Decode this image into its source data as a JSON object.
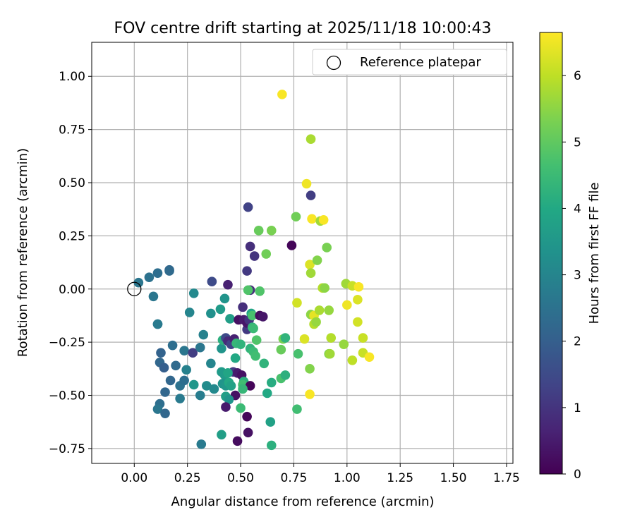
{
  "chart_data": {
    "type": "scatter",
    "title": "FOV centre drift starting at 2025/11/18 10:00:43",
    "xlabel": "Angular distance from reference (arcmin)",
    "ylabel": "Rotation from reference (arcmin)",
    "xlim": [
      -0.2,
      1.78
    ],
    "ylim": [
      -0.82,
      1.16
    ],
    "xticks": [
      0.0,
      0.25,
      0.5,
      0.75,
      1.0,
      1.25,
      1.5,
      1.75
    ],
    "xtick_labels": [
      "0.00",
      "0.25",
      "0.50",
      "0.75",
      "1.00",
      "1.25",
      "1.50",
      "1.75"
    ],
    "yticks": [
      -0.75,
      -0.5,
      -0.25,
      0.0,
      0.25,
      0.5,
      0.75,
      1.0
    ],
    "ytick_labels": [
      "−0.75",
      "−0.50",
      "−0.25",
      "0.00",
      "0.25",
      "0.50",
      "0.75",
      "1.00"
    ],
    "grid": true,
    "legend": {
      "position": "top-right",
      "entries": [
        "Reference platepar"
      ]
    },
    "reference_point": {
      "x": 0.0,
      "y": 0.0,
      "label": "Reference platepar"
    },
    "colorbar": {
      "label": "Hours from first FF file",
      "colormap": "viridis",
      "range": [
        0,
        6.65
      ],
      "ticks": [
        0,
        1,
        2,
        3,
        4,
        5,
        6
      ],
      "tick_labels": [
        "0",
        "1",
        "2",
        "3",
        "4",
        "5",
        "6"
      ]
    },
    "points": [
      {
        "x": 0.02,
        "y": 0.03,
        "hours": 2.6
      },
      {
        "x": 0.07,
        "y": 0.055,
        "hours": 2.5
      },
      {
        "x": 0.11,
        "y": 0.075,
        "hours": 2.4
      },
      {
        "x": 0.165,
        "y": 0.09,
        "hours": 2.2
      },
      {
        "x": 0.165,
        "y": 0.085,
        "hours": 2.3
      },
      {
        "x": 0.09,
        "y": -0.035,
        "hours": 2.6
      },
      {
        "x": 0.11,
        "y": -0.165,
        "hours": 2.6
      },
      {
        "x": 0.11,
        "y": -0.165,
        "hours": 2.7
      },
      {
        "x": 0.28,
        "y": -0.02,
        "hours": 3.1
      },
      {
        "x": 0.26,
        "y": -0.11,
        "hours": 3.0
      },
      {
        "x": 0.18,
        "y": -0.265,
        "hours": 2.4
      },
      {
        "x": 0.125,
        "y": -0.3,
        "hours": 2.1
      },
      {
        "x": 0.12,
        "y": -0.345,
        "hours": 2.2
      },
      {
        "x": 0.14,
        "y": -0.37,
        "hours": 2.0
      },
      {
        "x": 0.195,
        "y": -0.36,
        "hours": 2.3
      },
      {
        "x": 0.17,
        "y": -0.43,
        "hours": 2.2
      },
      {
        "x": 0.145,
        "y": -0.485,
        "hours": 2.2
      },
      {
        "x": 0.215,
        "y": -0.455,
        "hours": 2.5
      },
      {
        "x": 0.235,
        "y": -0.29,
        "hours": 2.6
      },
      {
        "x": 0.245,
        "y": -0.38,
        "hours": 2.9
      },
      {
        "x": 0.235,
        "y": -0.43,
        "hours": 2.4
      },
      {
        "x": 0.215,
        "y": -0.515,
        "hours": 2.7
      },
      {
        "x": 0.12,
        "y": -0.54,
        "hours": 2.4
      },
      {
        "x": 0.11,
        "y": -0.565,
        "hours": 2.6
      },
      {
        "x": 0.145,
        "y": -0.585,
        "hours": 2.2
      },
      {
        "x": 0.275,
        "y": -0.3,
        "hours": 1.2
      },
      {
        "x": 0.31,
        "y": -0.275,
        "hours": 2.6
      },
      {
        "x": 0.325,
        "y": -0.215,
        "hours": 2.9
      },
      {
        "x": 0.28,
        "y": -0.45,
        "hours": 3.5
      },
      {
        "x": 0.31,
        "y": -0.5,
        "hours": 2.8
      },
      {
        "x": 0.315,
        "y": -0.73,
        "hours": 2.7
      },
      {
        "x": 0.34,
        "y": -0.455,
        "hours": 3.2
      },
      {
        "x": 0.36,
        "y": -0.115,
        "hours": 3.3
      },
      {
        "x": 0.365,
        "y": 0.035,
        "hours": 1.5
      },
      {
        "x": 0.36,
        "y": -0.35,
        "hours": 3.0
      },
      {
        "x": 0.375,
        "y": -0.47,
        "hours": 3.1
      },
      {
        "x": 0.405,
        "y": -0.095,
        "hours": 3.6
      },
      {
        "x": 0.425,
        "y": -0.045,
        "hours": 3.4
      },
      {
        "x": 0.44,
        "y": 0.02,
        "hours": 0.6
      },
      {
        "x": 0.45,
        "y": -0.14,
        "hours": 3.7
      },
      {
        "x": 0.41,
        "y": -0.28,
        "hours": 3.4
      },
      {
        "x": 0.415,
        "y": -0.24,
        "hours": 4.2
      },
      {
        "x": 0.43,
        "y": -0.23,
        "hours": 1.5
      },
      {
        "x": 0.44,
        "y": -0.245,
        "hours": 0.8
      },
      {
        "x": 0.455,
        "y": -0.26,
        "hours": 1.3
      },
      {
        "x": 0.47,
        "y": -0.235,
        "hours": 0.6
      },
      {
        "x": 0.48,
        "y": -0.255,
        "hours": 4.4
      },
      {
        "x": 0.5,
        "y": -0.26,
        "hours": 4.3
      },
      {
        "x": 0.49,
        "y": -0.145,
        "hours": 0.3
      },
      {
        "x": 0.515,
        "y": -0.145,
        "hours": 0.5
      },
      {
        "x": 0.51,
        "y": -0.085,
        "hours": 0.9
      },
      {
        "x": 0.53,
        "y": -0.19,
        "hours": 1.1
      },
      {
        "x": 0.53,
        "y": -0.16,
        "hours": 0.4
      },
      {
        "x": 0.54,
        "y": -0.145,
        "hours": 1.0
      },
      {
        "x": 0.53,
        "y": 0.085,
        "hours": 1.1
      },
      {
        "x": 0.535,
        "y": 0.385,
        "hours": 1.3
      },
      {
        "x": 0.545,
        "y": 0.2,
        "hours": 0.9
      },
      {
        "x": 0.565,
        "y": 0.155,
        "hours": 1.0
      },
      {
        "x": 0.545,
        "y": -0.005,
        "hours": 0.9
      },
      {
        "x": 0.535,
        "y": -0.005,
        "hours": 4.8
      },
      {
        "x": 0.55,
        "y": -0.115,
        "hours": 3.9
      },
      {
        "x": 0.555,
        "y": -0.125,
        "hours": 4.7
      },
      {
        "x": 0.555,
        "y": -0.18,
        "hours": 4.3
      },
      {
        "x": 0.56,
        "y": -0.185,
        "hours": 4.5
      },
      {
        "x": 0.545,
        "y": -0.28,
        "hours": 4.3
      },
      {
        "x": 0.56,
        "y": -0.295,
        "hours": 4.5
      },
      {
        "x": 0.57,
        "y": -0.315,
        "hours": 4.6
      },
      {
        "x": 0.575,
        "y": -0.24,
        "hours": 4.8
      },
      {
        "x": 0.585,
        "y": 0.275,
        "hours": 5.1
      },
      {
        "x": 0.59,
        "y": -0.01,
        "hours": 4.8
      },
      {
        "x": 0.59,
        "y": -0.125,
        "hours": 0.2
      },
      {
        "x": 0.605,
        "y": -0.13,
        "hours": 0.4
      },
      {
        "x": 0.61,
        "y": -0.35,
        "hours": 4.3
      },
      {
        "x": 0.62,
        "y": 0.165,
        "hours": 5.2
      },
      {
        "x": 0.645,
        "y": 0.275,
        "hours": 5.3
      },
      {
        "x": 0.475,
        "y": -0.325,
        "hours": 4.0
      },
      {
        "x": 0.465,
        "y": -0.39,
        "hours": 1.2
      },
      {
        "x": 0.485,
        "y": -0.395,
        "hours": 0.5
      },
      {
        "x": 0.505,
        "y": -0.405,
        "hours": 0.3
      },
      {
        "x": 0.515,
        "y": -0.435,
        "hours": 4.2
      },
      {
        "x": 0.51,
        "y": -0.45,
        "hours": 4.6
      },
      {
        "x": 0.545,
        "y": -0.455,
        "hours": 0.1
      },
      {
        "x": 0.51,
        "y": -0.47,
        "hours": 4.4
      },
      {
        "x": 0.475,
        "y": -0.5,
        "hours": 0.3
      },
      {
        "x": 0.5,
        "y": -0.56,
        "hours": 4.5
      },
      {
        "x": 0.53,
        "y": -0.6,
        "hours": 0.1
      },
      {
        "x": 0.535,
        "y": -0.675,
        "hours": 0.3
      },
      {
        "x": 0.485,
        "y": -0.715,
        "hours": 0.2
      },
      {
        "x": 0.41,
        "y": -0.39,
        "hours": 3.6
      },
      {
        "x": 0.425,
        "y": -0.405,
        "hours": 3.6
      },
      {
        "x": 0.44,
        "y": -0.395,
        "hours": 3.9
      },
      {
        "x": 0.415,
        "y": -0.445,
        "hours": 3.4
      },
      {
        "x": 0.43,
        "y": -0.455,
        "hours": 3.5
      },
      {
        "x": 0.445,
        "y": -0.44,
        "hours": 4.0
      },
      {
        "x": 0.455,
        "y": -0.455,
        "hours": 3.8
      },
      {
        "x": 0.43,
        "y": -0.505,
        "hours": 3.7
      },
      {
        "x": 0.445,
        "y": -0.52,
        "hours": 3.4
      },
      {
        "x": 0.43,
        "y": -0.555,
        "hours": 0.5
      },
      {
        "x": 0.41,
        "y": -0.685,
        "hours": 3.7
      },
      {
        "x": 0.625,
        "y": -0.49,
        "hours": 4.0
      },
      {
        "x": 0.645,
        "y": -0.44,
        "hours": 4.1
      },
      {
        "x": 0.64,
        "y": -0.625,
        "hours": 3.8
      },
      {
        "x": 0.645,
        "y": -0.735,
        "hours": 4.2
      },
      {
        "x": 0.69,
        "y": -0.285,
        "hours": 5.1
      },
      {
        "x": 0.7,
        "y": -0.235,
        "hours": 5.3
      },
      {
        "x": 0.71,
        "y": -0.23,
        "hours": 4.3
      },
      {
        "x": 0.69,
        "y": -0.42,
        "hours": 4.7
      },
      {
        "x": 0.71,
        "y": -0.405,
        "hours": 4.2
      },
      {
        "x": 0.695,
        "y": 0.915,
        "hours": 6.6
      },
      {
        "x": 0.74,
        "y": 0.205,
        "hours": 0.1
      },
      {
        "x": 0.76,
        "y": 0.34,
        "hours": 5.2
      },
      {
        "x": 0.765,
        "y": -0.065,
        "hours": 6.2
      },
      {
        "x": 0.77,
        "y": -0.305,
        "hours": 4.7
      },
      {
        "x": 0.765,
        "y": -0.565,
        "hours": 4.6
      },
      {
        "x": 0.8,
        "y": -0.235,
        "hours": 6.3
      },
      {
        "x": 0.81,
        "y": 0.495,
        "hours": 6.5
      },
      {
        "x": 0.825,
        "y": 0.115,
        "hours": 6.3
      },
      {
        "x": 0.83,
        "y": 0.705,
        "hours": 5.8
      },
      {
        "x": 0.83,
        "y": 0.44,
        "hours": 1.2
      },
      {
        "x": 0.835,
        "y": 0.33,
        "hours": 6.6
      },
      {
        "x": 0.83,
        "y": 0.075,
        "hours": 5.7
      },
      {
        "x": 0.83,
        "y": -0.12,
        "hours": 5.5
      },
      {
        "x": 0.845,
        "y": -0.125,
        "hours": 6.4
      },
      {
        "x": 0.845,
        "y": -0.165,
        "hours": 5.9
      },
      {
        "x": 0.855,
        "y": -0.155,
        "hours": 5.6
      },
      {
        "x": 0.86,
        "y": 0.135,
        "hours": 5.4
      },
      {
        "x": 0.825,
        "y": -0.375,
        "hours": 5.4
      },
      {
        "x": 0.825,
        "y": -0.495,
        "hours": 6.6
      },
      {
        "x": 0.875,
        "y": 0.32,
        "hours": 5.7
      },
      {
        "x": 0.89,
        "y": 0.325,
        "hours": 6.6
      },
      {
        "x": 0.87,
        "y": -0.1,
        "hours": 5.8
      },
      {
        "x": 0.885,
        "y": 0.005,
        "hours": 5.9
      },
      {
        "x": 0.895,
        "y": 0.005,
        "hours": 5.5
      },
      {
        "x": 0.905,
        "y": 0.195,
        "hours": 5.3
      },
      {
        "x": 0.915,
        "y": -0.1,
        "hours": 5.6
      },
      {
        "x": 0.915,
        "y": -0.305,
        "hours": 5.4
      },
      {
        "x": 0.92,
        "y": -0.305,
        "hours": 5.7
      },
      {
        "x": 0.925,
        "y": -0.23,
        "hours": 5.9
      },
      {
        "x": 0.985,
        "y": -0.26,
        "hours": 5.6
      },
      {
        "x": 0.995,
        "y": 0.025,
        "hours": 5.7
      },
      {
        "x": 1.0,
        "y": -0.075,
        "hours": 6.5
      },
      {
        "x": 1.025,
        "y": 0.015,
        "hours": 6.1
      },
      {
        "x": 1.05,
        "y": -0.05,
        "hours": 6.3
      },
      {
        "x": 1.055,
        "y": 0.01,
        "hours": 6.6
      },
      {
        "x": 1.05,
        "y": -0.155,
        "hours": 6.2
      },
      {
        "x": 1.025,
        "y": -0.335,
        "hours": 6.0
      },
      {
        "x": 1.075,
        "y": -0.23,
        "hours": 6.1
      },
      {
        "x": 1.075,
        "y": -0.3,
        "hours": 6.1
      },
      {
        "x": 1.105,
        "y": -0.32,
        "hours": 6.6
      }
    ]
  }
}
